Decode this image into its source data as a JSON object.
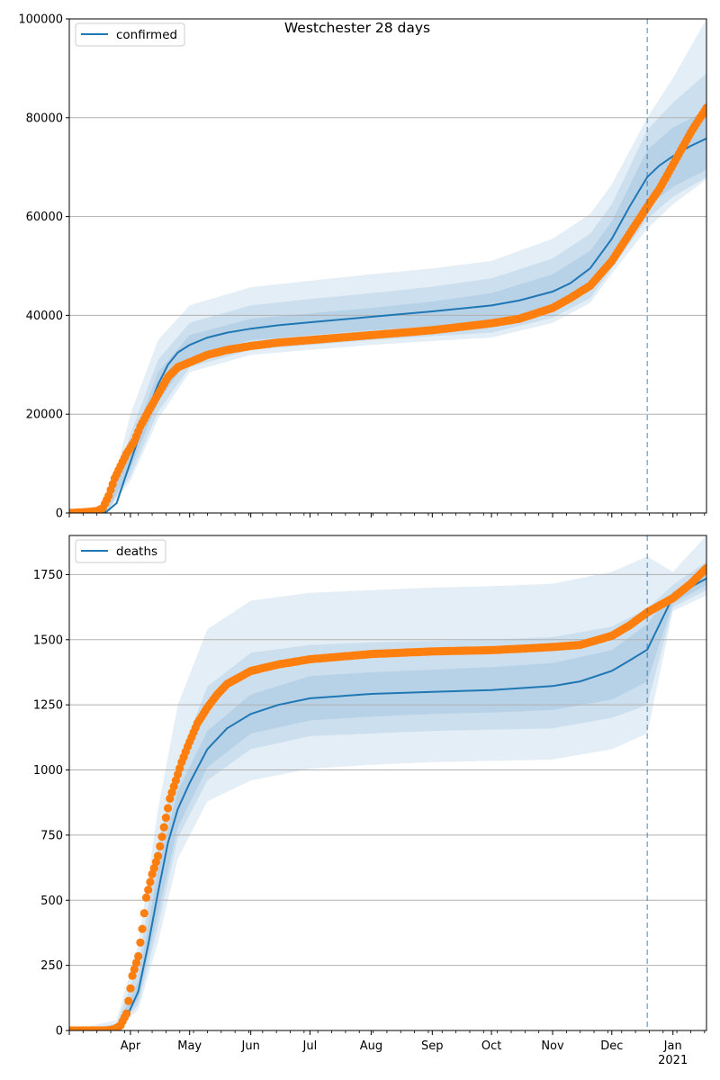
{
  "figure": {
    "title": "Westchester 28 days",
    "x_tick_labels": [
      "Apr",
      "May",
      "Jun",
      "Jul",
      "Aug",
      "Sep",
      "Oct",
      "Nov",
      "Dec",
      "Jan"
    ],
    "x_year_label": "2021"
  },
  "colors": {
    "model": "#1f77b4",
    "observed": "#ff7f0e",
    "band": "#1f77b4",
    "grid": "#b0b0b0",
    "vline": "#1f77b4"
  },
  "chart_data": [
    {
      "type": "line",
      "panel": "top",
      "legend": [
        "confirmed"
      ],
      "legend_position": "top-left",
      "x_axis": "date",
      "x_range": [
        "2020-03-01",
        "2021-01-18"
      ],
      "ylim": [
        0,
        100000
      ],
      "y_ticks": [
        0,
        20000,
        40000,
        60000,
        80000,
        100000
      ],
      "y_tick_labels": [
        "0",
        "20000",
        "40000",
        "60000",
        "80000",
        "100000"
      ],
      "grid": "horizontal",
      "forecast_start": "2020-12-19",
      "series": [
        {
          "name": "confirmed",
          "kind": "model-median-line",
          "x": [
            "2020-03-01",
            "2020-03-15",
            "2020-03-20",
            "2020-03-25",
            "2020-03-30",
            "2020-04-05",
            "2020-04-10",
            "2020-04-15",
            "2020-04-20",
            "2020-04-25",
            "2020-05-01",
            "2020-05-10",
            "2020-05-20",
            "2020-06-01",
            "2020-06-15",
            "2020-07-01",
            "2020-08-01",
            "2020-09-01",
            "2020-10-01",
            "2020-10-15",
            "2020-11-01",
            "2020-11-10",
            "2020-11-20",
            "2020-12-01",
            "2020-12-10",
            "2020-12-19",
            "2020-12-25",
            "2021-01-01",
            "2021-01-10",
            "2021-01-18"
          ],
          "values": [
            0,
            0,
            300,
            2000,
            8000,
            15000,
            21000,
            26000,
            30000,
            32500,
            34000,
            35500,
            36500,
            37300,
            38000,
            38600,
            39700,
            40800,
            42000,
            43000,
            44800,
            46500,
            49500,
            55500,
            62000,
            68000,
            70300,
            72200,
            74300,
            75800
          ]
        },
        {
          "kind": "band-inner",
          "x": [
            "2020-03-01",
            "2020-03-20",
            "2020-04-01",
            "2020-04-15",
            "2020-05-01",
            "2020-06-01",
            "2020-07-01",
            "2020-08-01",
            "2020-09-01",
            "2020-10-01",
            "2020-11-01",
            "2020-11-20",
            "2020-12-01",
            "2020-12-19",
            "2021-01-01",
            "2021-01-18"
          ],
          "lower": [
            0,
            200,
            9000,
            22500,
            31500,
            35000,
            36000,
            37000,
            37800,
            38500,
            41500,
            45500,
            51500,
            62000,
            66000,
            69500
          ],
          "upper": [
            0,
            400,
            13500,
            28500,
            36000,
            39300,
            40400,
            41500,
            42800,
            44500,
            48300,
            53000,
            59000,
            73500,
            78000,
            81500
          ]
        },
        {
          "kind": "band-middle",
          "x": [
            "2020-03-01",
            "2020-03-20",
            "2020-04-01",
            "2020-04-15",
            "2020-05-01",
            "2020-06-01",
            "2020-07-01",
            "2020-08-01",
            "2020-09-01",
            "2020-10-01",
            "2020-11-01",
            "2020-11-20",
            "2020-12-01",
            "2020-12-19",
            "2021-01-01",
            "2021-01-18"
          ],
          "lower": [
            0,
            150,
            7500,
            20500,
            29500,
            33000,
            34000,
            35000,
            35800,
            36500,
            39500,
            43500,
            49500,
            59500,
            64000,
            68000
          ],
          "upper": [
            0,
            500,
            16000,
            31000,
            38500,
            42000,
            43300,
            44500,
            45800,
            47500,
            51500,
            56500,
            62500,
            77500,
            83000,
            89000
          ]
        },
        {
          "kind": "band-outer",
          "x": [
            "2020-03-01",
            "2020-03-20",
            "2020-04-01",
            "2020-04-15",
            "2020-05-01",
            "2020-06-01",
            "2020-07-01",
            "2020-08-01",
            "2020-09-01",
            "2020-10-01",
            "2020-11-01",
            "2020-11-20",
            "2020-12-01",
            "2020-12-19",
            "2021-01-01",
            "2021-01-18"
          ],
          "lower": [
            0,
            100,
            6500,
            19000,
            28500,
            32000,
            33000,
            34000,
            34800,
            35500,
            38500,
            42500,
            48500,
            57500,
            62500,
            67500
          ],
          "upper": [
            0,
            800,
            20000,
            35000,
            42000,
            45700,
            47000,
            48300,
            49500,
            51000,
            55500,
            60500,
            66500,
            80000,
            88000,
            100000
          ]
        },
        {
          "name": "observed",
          "kind": "observed-points",
          "x": [
            "2020-03-01",
            "2020-03-10",
            "2020-03-15",
            "2020-03-18",
            "2020-03-21",
            "2020-03-24",
            "2020-03-27",
            "2020-03-30",
            "2020-04-03",
            "2020-04-06",
            "2020-04-10",
            "2020-04-15",
            "2020-04-20",
            "2020-04-25",
            "2020-05-01",
            "2020-05-10",
            "2020-05-20",
            "2020-06-01",
            "2020-06-15",
            "2020-07-01",
            "2020-08-01",
            "2020-09-01",
            "2020-10-01",
            "2020-10-15",
            "2020-11-01",
            "2020-11-10",
            "2020-11-20",
            "2020-12-01",
            "2020-12-10",
            "2020-12-19",
            "2020-12-25",
            "2021-01-01",
            "2021-01-10",
            "2021-01-18"
          ],
          "values": [
            0,
            200,
            400,
            1000,
            3500,
            7000,
            9500,
            12000,
            14500,
            17500,
            20500,
            24000,
            27500,
            29500,
            30500,
            32000,
            33000,
            33800,
            34500,
            35000,
            36000,
            37000,
            38400,
            39300,
            41500,
            43500,
            46000,
            51000,
            56500,
            62000,
            65500,
            70500,
            77000,
            82000
          ]
        }
      ]
    },
    {
      "type": "line",
      "panel": "bottom",
      "legend": [
        "deaths"
      ],
      "legend_position": "top-left",
      "x_axis": "date",
      "x_range": [
        "2020-03-01",
        "2021-01-18"
      ],
      "ylim": [
        0,
        1900
      ],
      "y_ticks": [
        0,
        250,
        500,
        750,
        1000,
        1250,
        1500,
        1750
      ],
      "y_tick_labels": [
        "0",
        "250",
        "500",
        "750",
        "1000",
        "1250",
        "1500",
        "1750"
      ],
      "grid": "horizontal",
      "forecast_start": "2020-12-19",
      "series": [
        {
          "name": "deaths",
          "kind": "model-median-line",
          "x": [
            "2020-03-01",
            "2020-03-20",
            "2020-03-25",
            "2020-03-30",
            "2020-04-05",
            "2020-04-10",
            "2020-04-15",
            "2020-04-20",
            "2020-04-25",
            "2020-05-01",
            "2020-05-10",
            "2020-05-20",
            "2020-06-01",
            "2020-06-15",
            "2020-07-01",
            "2020-08-01",
            "2020-09-01",
            "2020-10-01",
            "2020-11-01",
            "2020-11-15",
            "2020-12-01",
            "2020-12-10",
            "2020-12-19",
            "2021-01-01",
            "2021-01-18"
          ],
          "values": [
            0,
            0,
            10,
            50,
            150,
            330,
            530,
            720,
            850,
            950,
            1080,
            1160,
            1215,
            1250,
            1275,
            1292,
            1300,
            1307,
            1322,
            1340,
            1380,
            1420,
            1462,
            1665,
            1735
          ]
        },
        {
          "kind": "band-inner",
          "x": [
            "2020-03-01",
            "2020-03-25",
            "2020-04-05",
            "2020-04-15",
            "2020-04-25",
            "2020-05-10",
            "2020-06-01",
            "2020-07-01",
            "2020-08-01",
            "2020-09-01",
            "2020-10-01",
            "2020-11-01",
            "2020-12-01",
            "2020-12-19",
            "2021-01-01",
            "2021-01-18"
          ],
          "lower": [
            0,
            8,
            120,
            450,
            780,
            1010,
            1140,
            1190,
            1205,
            1215,
            1220,
            1230,
            1270,
            1340,
            1640,
            1710
          ],
          "upper": [
            0,
            15,
            190,
            620,
            920,
            1150,
            1290,
            1360,
            1375,
            1385,
            1395,
            1410,
            1460,
            1560,
            1685,
            1755
          ]
        },
        {
          "kind": "band-middle",
          "x": [
            "2020-03-01",
            "2020-03-25",
            "2020-04-05",
            "2020-04-15",
            "2020-04-25",
            "2020-05-10",
            "2020-06-01",
            "2020-07-01",
            "2020-08-01",
            "2020-09-01",
            "2020-10-01",
            "2020-11-01",
            "2020-12-01",
            "2020-12-19",
            "2021-01-01",
            "2021-01-18"
          ],
          "lower": [
            0,
            5,
            100,
            400,
            740,
            960,
            1080,
            1130,
            1140,
            1150,
            1155,
            1160,
            1200,
            1250,
            1625,
            1690
          ],
          "upper": [
            0,
            25,
            250,
            710,
            1030,
            1320,
            1450,
            1480,
            1490,
            1495,
            1500,
            1510,
            1550,
            1620,
            1710,
            1800
          ]
        },
        {
          "kind": "band-outer",
          "x": [
            "2020-03-01",
            "2020-03-25",
            "2020-04-05",
            "2020-04-15",
            "2020-04-25",
            "2020-05-10",
            "2020-06-01",
            "2020-07-01",
            "2020-08-01",
            "2020-09-01",
            "2020-10-01",
            "2020-11-01",
            "2020-12-01",
            "2020-12-19",
            "2021-01-01",
            "2021-01-18"
          ],
          "lower": [
            0,
            3,
            80,
            340,
            660,
            880,
            960,
            1005,
            1020,
            1030,
            1035,
            1040,
            1080,
            1140,
            1610,
            1670
          ],
          "upper": [
            0,
            40,
            330,
            850,
            1250,
            1540,
            1650,
            1680,
            1690,
            1700,
            1705,
            1715,
            1760,
            1820,
            1760,
            1900
          ]
        },
        {
          "name": "observed",
          "kind": "observed-points",
          "x": [
            "2020-03-01",
            "2020-03-20",
            "2020-03-24",
            "2020-03-27",
            "2020-03-30",
            "2020-04-02",
            "2020-04-05",
            "2020-04-07",
            "2020-04-09",
            "2020-04-12",
            "2020-04-15",
            "2020-04-18",
            "2020-04-21",
            "2020-04-24",
            "2020-04-27",
            "2020-04-30",
            "2020-05-05",
            "2020-05-10",
            "2020-05-15",
            "2020-05-20",
            "2020-06-01",
            "2020-06-15",
            "2020-07-01",
            "2020-08-01",
            "2020-09-01",
            "2020-10-01",
            "2020-10-15",
            "2020-11-01",
            "2020-11-15",
            "2020-12-01",
            "2020-12-10",
            "2020-12-19",
            "2021-01-01",
            "2021-01-10",
            "2021-01-18"
          ],
          "values": [
            0,
            0,
            5,
            20,
            65,
            210,
            285,
            390,
            510,
            600,
            670,
            780,
            890,
            960,
            1030,
            1090,
            1180,
            1240,
            1290,
            1330,
            1380,
            1405,
            1425,
            1445,
            1455,
            1460,
            1465,
            1472,
            1480,
            1515,
            1555,
            1605,
            1660,
            1715,
            1775
          ]
        }
      ]
    }
  ]
}
